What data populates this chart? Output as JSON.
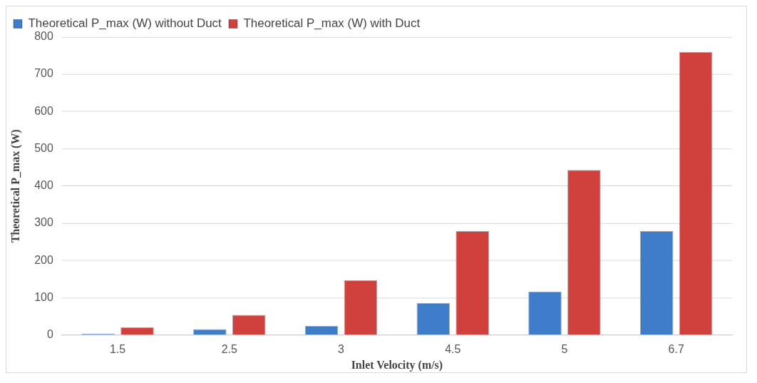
{
  "chart_data": {
    "type": "bar",
    "xlabel": "Inlet Velocity (m/s)",
    "ylabel": "Theoretical P_max (W)",
    "categories": [
      "1.5",
      "2.5",
      "3",
      "4.5",
      "5",
      "6.7"
    ],
    "series": [
      {
        "name": "Theoretical P_max (W) without Duct",
        "color": "#3f7cc9",
        "values": [
          4,
          16,
          25,
          86,
          117,
          279
        ]
      },
      {
        "name": "Theoretical P_max (W) with Duct",
        "color": "#d0403c",
        "values": [
          21,
          54,
          147,
          279,
          443,
          760
        ]
      }
    ],
    "ylim": [
      0,
      800
    ],
    "yticks": [
      0,
      100,
      200,
      300,
      400,
      500,
      600,
      700,
      800
    ],
    "grid": "y",
    "legend": "top"
  }
}
